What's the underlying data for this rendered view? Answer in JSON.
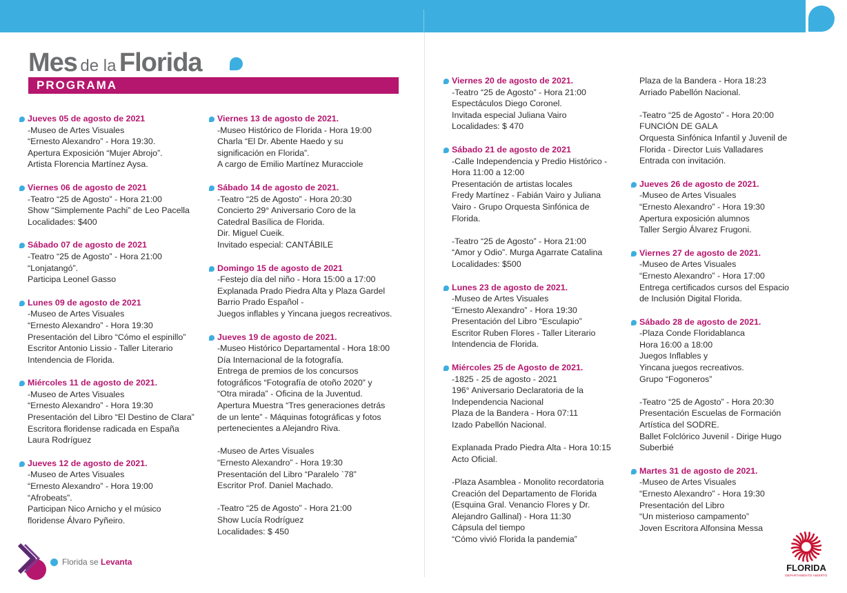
{
  "header": {
    "title_part1": "Mes",
    "title_part2": "de la",
    "title_part3": "Florida",
    "banner": "PROGRAMA"
  },
  "columns": [
    {
      "events": [
        {
          "date": "Jueves 05 de agosto de 2021",
          "lines": [
            "-Museo de Artes Visuales",
            "“Ernesto Alexandro” - Hora 19:30.",
            "Apertura Exposición “Mujer Abrojo”.",
            "Artista Florencia Martínez Aysa."
          ]
        },
        {
          "date": "Viernes 06 de agosto de 2021",
          "lines": [
            "-Teatro “25 de Agosto” - Hora 21:00",
            "Show “Simplemente Pachi” de Leo Pacella",
            "Localidades: $400"
          ]
        },
        {
          "date": "Sábado 07 de agosto de 2021",
          "lines": [
            "-Teatro “25 de Agosto” - Hora 21:00",
            "“Lonjatangó”.",
            "Participa Leonel Gasso"
          ]
        },
        {
          "date": "Lunes 09 de agosto de 2021",
          "lines": [
            "-Museo de Artes Visuales",
            "“Ernesto Alexandro” - Hora 19:30",
            "Presentación del Libro “Cómo el espinillo”",
            "Escritor Antonio Lissio - Taller Literario",
            "Intendencia de Florida."
          ]
        },
        {
          "date": "Miércoles 11 de agosto de 2021.",
          "lines": [
            "-Museo de Artes Visuales",
            "“Ernesto Alexandro” - Hora 19:30",
            "Presentación del Libro “El Destino de Clara”",
            "Escritora floridense radicada en España",
            "Laura Rodríguez"
          ]
        },
        {
          "date": "Jueves 12 de agosto de 2021.",
          "lines": [
            "-Museo de Artes Visuales",
            "“Ernesto Alexandro” - Hora 19:00",
            "“Afrobeats”.",
            "Participan Nico Arnicho y el músico",
            "floridense Álvaro Pyñeiro."
          ]
        }
      ]
    },
    {
      "events": [
        {
          "date": "Viernes 13 de agosto de 2021.",
          "lines": [
            "-Museo Histórico de Florida - Hora 19:00",
            "Charla “El Dr. Abente Haedo y su",
            "significación en Florida”.",
            "A cargo de Emilio Martínez Muracciole"
          ]
        },
        {
          "date": "Sábado 14 de agosto de 2021.",
          "lines": [
            "-Teatro “25 de Agosto” - Hora 20:30",
            "Concierto 29° Aniversario Coro de la",
            "Catedral Basílica de Florida.",
            "Dir. Miguel Cueik.",
            "Invitado especial: CANTÁBILE"
          ]
        },
        {
          "date": "Domingo 15 de agosto de 2021",
          "lines": [
            "-Festejo día del niño - Hora 15:00 a 17:00",
            "Explanada Prado Piedra Alta y Plaza Gardel",
            "Barrio Prado Español -",
            "Juegos inflables y Yincana juegos recreativos."
          ]
        },
        {
          "date": "Jueves 19 de agosto de 2021.",
          "lines": [
            "-Museo Histórico Departamental - Hora 18:00",
            "Día Internacional de la fotografía.",
            "Entrega de premios de los concursos",
            "fotográficos “Fotografía de otoño 2020” y",
            "“Otra mirada” - Oficina de la Juventud.",
            "Apertura Muestra “Tres generaciones detrás",
            "de un lente” - Máquinas fotográficas y fotos",
            "pertenecientes a Alejandro Riva.",
            "",
            "-Museo de Artes Visuales",
            "“Ernesto Alexandro” - Hora 19:30",
            "Presentación del Libro “Paralelo `78”",
            "Escritor Prof. Daniel Machado.",
            "",
            "-Teatro “25 de Agosto” - Hora 21:00",
            "Show Lucía Rodríguez",
            "Localidades: $ 450"
          ]
        }
      ]
    },
    {
      "events": [
        {
          "date": "Viernes 20 de agosto de 2021.",
          "lines": [
            "-Teatro “25 de Agosto” - Hora 21:00",
            "Espectáculos Diego Coronel.",
            "Invitada especial Juliana Vairo",
            "Localidades: $ 470"
          ]
        },
        {
          "date": "Sábado 21 de agosto de 2021",
          "lines": [
            "-Calle Independencia y Predio Histórico -",
            "Hora 11:00 a 12:00",
            "Presentación de artistas locales",
            "Fredy Martínez - Fabián Vairo y Juliana",
            "Vairo - Grupo Orquesta Sinfónica de",
            "Florida.",
            "",
            "-Teatro “25 de Agosto” - Hora 21:00",
            "“Amor y Odio”. Murga Agarrate Catalina",
            "Localidades: $500"
          ]
        },
        {
          "date": "Lunes 23 de agosto de 2021.",
          "lines": [
            "-Museo de Artes Visuales",
            "“Ernesto Alexandro” - Hora 19:30",
            "Presentación del Libro “Esculapio”",
            "Escritor Ruben Flores - Taller Literario",
            "Intendencia de Florida."
          ]
        },
        {
          "date": "Miércoles 25 de Agosto de 2021.",
          "lines": [
            "-1825 - 25 de agosto - 2021",
            "196° Aniversario Declaratoria de la",
            "Independencia Nacional",
            "Plaza de la Bandera - Hora 07:11",
            "Izado Pabellón Nacional.",
            "",
            "Explanada Prado Piedra Alta - Hora 10:15",
            "Acto Oficial.",
            "",
            "-Plaza Asamblea - Monolito recordatoria",
            "Creación del Departamento de Florida",
            "(Esquina Gral. Venancio Flores y Dr.",
            "Alejandro Gallinal) - Hora 11:30",
            "Cápsula del tiempo",
            "“Cómo vivió Florida la pandemia”"
          ]
        }
      ]
    },
    {
      "intro": [
        "Plaza de la Bandera - Hora 18:23",
        "Arriado Pabellón Nacional.",
        "",
        "-Teatro “25 de Agosto” - Hora 20:00",
        "FUNCIÓN DE GALA",
        "Orquesta Sinfónica Infantil y Juvenil de",
        "Florida - Director Luis Valladares",
        "Entrada con invitación."
      ],
      "events": [
        {
          "date": "Jueves 26 de agosto de 2021.",
          "lines": [
            "-Museo de Artes Visuales",
            "“Ernesto Alexandro” - Hora 19:30",
            "Apertura exposición alumnos",
            "Taller Sergio Álvarez Frugoni."
          ]
        },
        {
          "date": "Viernes 27 de agosto de 2021.",
          "lines": [
            "-Museo de Artes Visuales",
            "“Ernesto Alexandro” - Hora 17:00",
            "Entrega certificados cursos del Espacio",
            "de Inclusión Digital Florida."
          ]
        },
        {
          "date": "Sábado 28 de agosto de 2021.",
          "lines": [
            "-Plaza Conde Floridablanca",
            "Hora 16:00 a 18:00",
            "Juegos Inflables y",
            "Yincana juegos recreativos.",
            "Grupo “Fogoneros”",
            "",
            "-Teatro “25 de Agosto” - Hora 20:30",
            "Presentación Escuelas de Formación",
            "Artística del SODRE.",
            "Ballet Folclórico Juvenil - Dirige Hugo",
            "Suberbié"
          ]
        },
        {
          "date": "Martes 31 de agosto de 2021.",
          "lines": [
            "-Museo de Artes Visuales",
            "“Ernesto Alexandro” - Hora 19:30",
            "Presentación del Libro",
            "“Un misterioso campamento”",
            "Joven Escritora Alfonsina Messa"
          ]
        }
      ]
    }
  ],
  "footer": {
    "slogan_part1": "Florida se",
    "slogan_part2": "Levanta",
    "logo_name": "FLORIDA",
    "logo_sub": "DEPARTAMENTO ABIERTO"
  },
  "colors": {
    "accent_magenta": "#b5166e",
    "accent_blue": "#3daee0",
    "title_gray": "#6d6e70"
  },
  "icons": {
    "bullet": "drop-bullet-icon",
    "header_drop": "drop-icon",
    "brand_mark": "chevron-logo-icon",
    "florida_sun": "sun-logo-icon"
  }
}
